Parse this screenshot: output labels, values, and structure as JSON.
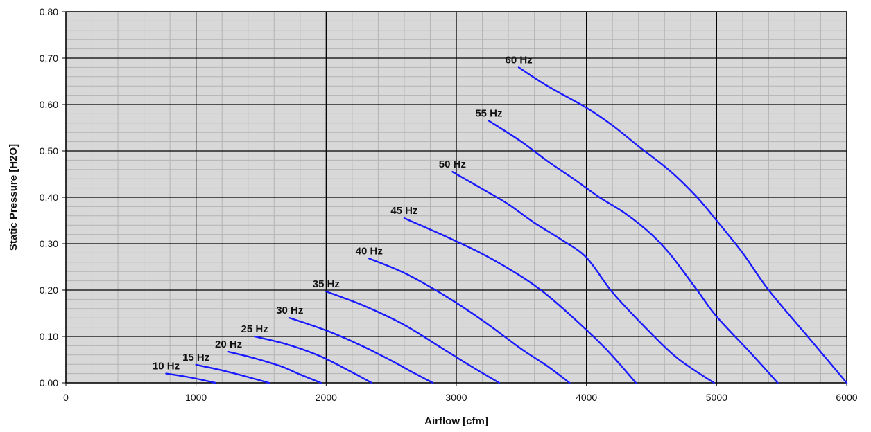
{
  "chart_data": {
    "type": "line",
    "title": "",
    "xlabel": "Airflow [cfm]",
    "ylabel": "Static Pressure  [H2O]",
    "xlim": [
      0,
      6000
    ],
    "ylim": [
      0,
      0.8
    ],
    "x_ticks": [
      "0",
      "1000",
      "2000",
      "3000",
      "4000",
      "5000",
      "6000"
    ],
    "y_ticks": [
      "0,00",
      "0,10",
      "0,20",
      "0,30",
      "0,40",
      "0,50",
      "0,60",
      "0,70",
      "0,80"
    ],
    "grid": true,
    "colors": {
      "line": "#1a1aff",
      "plot_bg": "#d8d8d8",
      "major_grid": "#000000",
      "minor_grid": "#b4b4b4"
    },
    "series": [
      {
        "name": "10 Hz",
        "points": [
          [
            770,
            0.02
          ],
          [
            950,
            0.012
          ],
          [
            1150,
            0.0
          ]
        ]
      },
      {
        "name": "15 Hz",
        "points": [
          [
            1000,
            0.039
          ],
          [
            1200,
            0.027
          ],
          [
            1380,
            0.014
          ],
          [
            1560,
            0.0
          ]
        ]
      },
      {
        "name": "20 Hz",
        "points": [
          [
            1250,
            0.067
          ],
          [
            1450,
            0.053
          ],
          [
            1650,
            0.036
          ],
          [
            1800,
            0.018
          ],
          [
            1960,
            0.0
          ]
        ]
      },
      {
        "name": "25 Hz",
        "points": [
          [
            1450,
            0.1
          ],
          [
            1700,
            0.083
          ],
          [
            1950,
            0.058
          ],
          [
            2150,
            0.03
          ],
          [
            2350,
            0.0
          ]
        ]
      },
      {
        "name": "30 Hz",
        "points": [
          [
            1720,
            0.14
          ],
          [
            2000,
            0.113
          ],
          [
            2250,
            0.083
          ],
          [
            2500,
            0.048
          ],
          [
            2650,
            0.025
          ],
          [
            2820,
            0.0
          ]
        ]
      },
      {
        "name": "35  Hz",
        "points": [
          [
            2000,
            0.197
          ],
          [
            2300,
            0.165
          ],
          [
            2600,
            0.125
          ],
          [
            2900,
            0.073
          ],
          [
            3100,
            0.038
          ],
          [
            3330,
            0.0
          ]
        ]
      },
      {
        "name": "40 Hz",
        "points": [
          [
            2330,
            0.268
          ],
          [
            2600,
            0.237
          ],
          [
            2900,
            0.19
          ],
          [
            3200,
            0.135
          ],
          [
            3500,
            0.073
          ],
          [
            3700,
            0.036
          ],
          [
            3870,
            0.0
          ]
        ]
      },
      {
        "name": "45 Hz",
        "points": [
          [
            2600,
            0.355
          ],
          [
            2900,
            0.318
          ],
          [
            3200,
            0.278
          ],
          [
            3450,
            0.238
          ],
          [
            3650,
            0.2
          ],
          [
            3900,
            0.14
          ],
          [
            4150,
            0.073
          ],
          [
            4380,
            0.0
          ]
        ]
      },
      {
        "name": "50 Hz",
        "points": [
          [
            2970,
            0.455
          ],
          [
            3200,
            0.418
          ],
          [
            3400,
            0.385
          ],
          [
            3600,
            0.345
          ],
          [
            3800,
            0.31
          ],
          [
            4000,
            0.27
          ],
          [
            4200,
            0.195
          ],
          [
            4450,
            0.12
          ],
          [
            4700,
            0.053
          ],
          [
            4980,
            0.0
          ]
        ]
      },
      {
        "name": "55 Hz",
        "points": [
          [
            3250,
            0.565
          ],
          [
            3500,
            0.52
          ],
          [
            3700,
            0.478
          ],
          [
            3900,
            0.44
          ],
          [
            4100,
            0.4
          ],
          [
            4300,
            0.365
          ],
          [
            4500,
            0.32
          ],
          [
            4650,
            0.275
          ],
          [
            4850,
            0.2
          ],
          [
            5000,
            0.143
          ],
          [
            5250,
            0.068
          ],
          [
            5470,
            0.0
          ]
        ]
      },
      {
        "name": "60 Hz",
        "points": [
          [
            3480,
            0.68
          ],
          [
            3700,
            0.64
          ],
          [
            4000,
            0.593
          ],
          [
            4200,
            0.555
          ],
          [
            4400,
            0.51
          ],
          [
            4650,
            0.455
          ],
          [
            4850,
            0.4
          ],
          [
            5000,
            0.35
          ],
          [
            5200,
            0.28
          ],
          [
            5400,
            0.2
          ],
          [
            5700,
            0.1
          ],
          [
            6000,
            0.0
          ]
        ]
      }
    ]
  }
}
